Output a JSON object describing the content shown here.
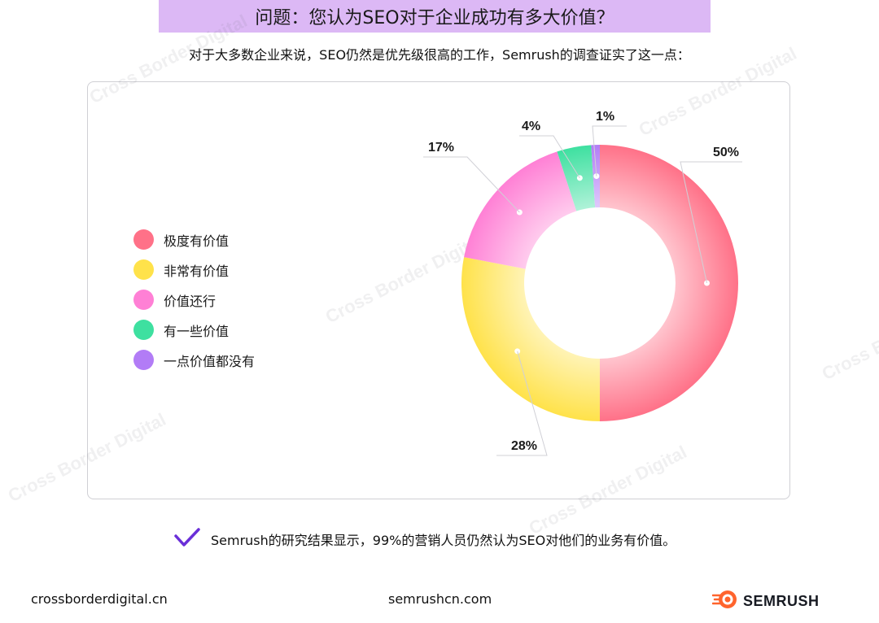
{
  "header": {
    "title": "问题：您认为SEO对于企业成功有多大价值？",
    "subtitle": "对于大多数企业来说，SEO仍然是优先级很高的工作，Semrush的调查证实了这一点："
  },
  "chart_data": {
    "type": "pie",
    "donut": true,
    "legend_position": "left",
    "categories": [
      "极度有价值",
      "非常有价值",
      "价值还行",
      "有一些价值",
      "一点价值都没有"
    ],
    "values": [
      50,
      28,
      17,
      4,
      1
    ],
    "labels": [
      "50%",
      "28%",
      "17%",
      "4%",
      "1%"
    ],
    "colors": [
      "#ff7188",
      "#ffe24a",
      "#ff80d5",
      "#3ee0a0",
      "#b27cf6"
    ]
  },
  "note": {
    "text": "Semrush的研究结果显示，99%的营销人员仍然认为SEO对他们的业务有价值。",
    "icon": "checkmark-icon"
  },
  "watermark": "Cross Border Digital",
  "footer": {
    "left": "crossborderdigital.cn",
    "center": "semrushcn.com",
    "brand": "SEMRUSH"
  }
}
